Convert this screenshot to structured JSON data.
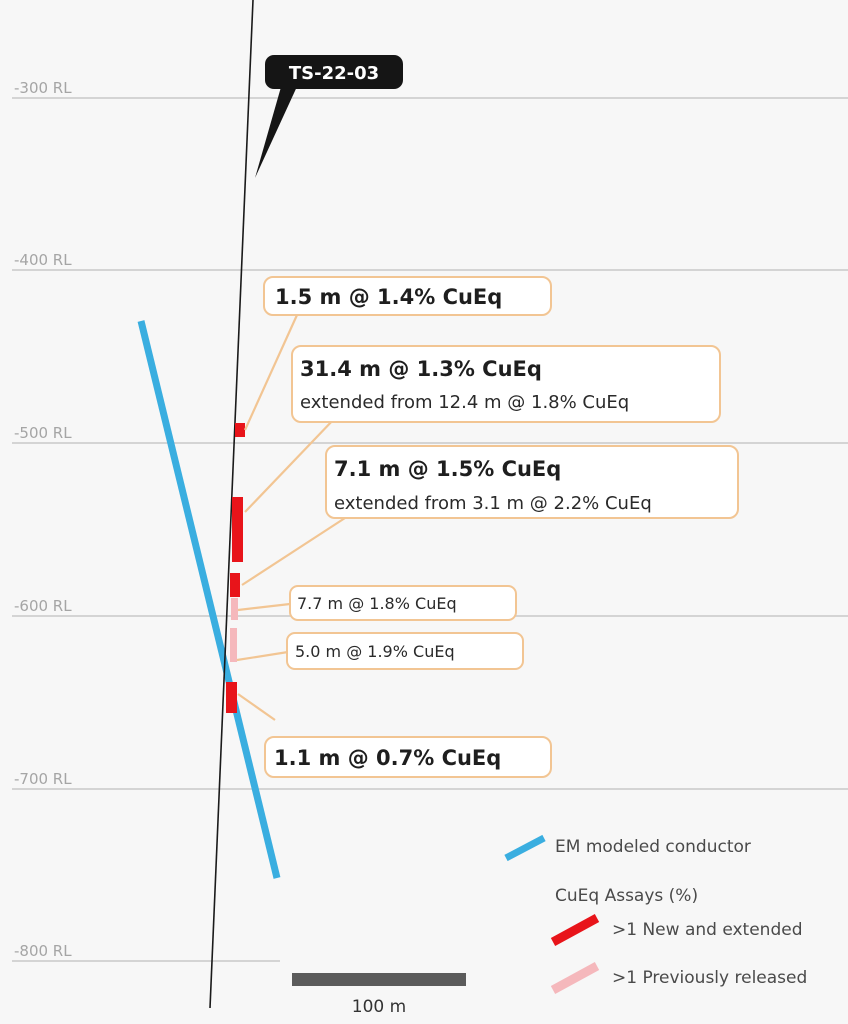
{
  "hole": {
    "id": "TS-22-03"
  },
  "levels": [
    "-300 RL",
    "-400 RL",
    "-500 RL",
    "-600 RL",
    "-700 RL",
    "-800 RL"
  ],
  "intercepts": [
    {
      "main": "1.5 m @ 1.4% CuEq",
      "sub": ""
    },
    {
      "main": "31.4 m @ 1.3% CuEq",
      "sub": "extended from 12.4 m @ 1.8% CuEq"
    },
    {
      "main": "7.1 m @ 1.5% CuEq",
      "sub": "extended from 3.1 m @ 2.2% CuEq"
    },
    {
      "main": "7.7 m @ 1.8% CuEq",
      "sub": ""
    },
    {
      "main": "5.0 m @ 1.9% CuEq",
      "sub": ""
    },
    {
      "main": "1.1 m @ 0.7% CuEq",
      "sub": ""
    }
  ],
  "legend": {
    "conductor": "EM modeled conductor",
    "assays_title": "CuEq Assays (%)",
    "new": ">1 New and extended",
    "previous": ">1 Previously released"
  },
  "scale_bar": {
    "label": "100 m"
  },
  "colors": {
    "conductor": "#3aaee0",
    "new_assay": "#e8141a",
    "previous_assay": "#f5b8bc",
    "callout_border": "#f2c593",
    "grid": "#c9c9c9"
  }
}
